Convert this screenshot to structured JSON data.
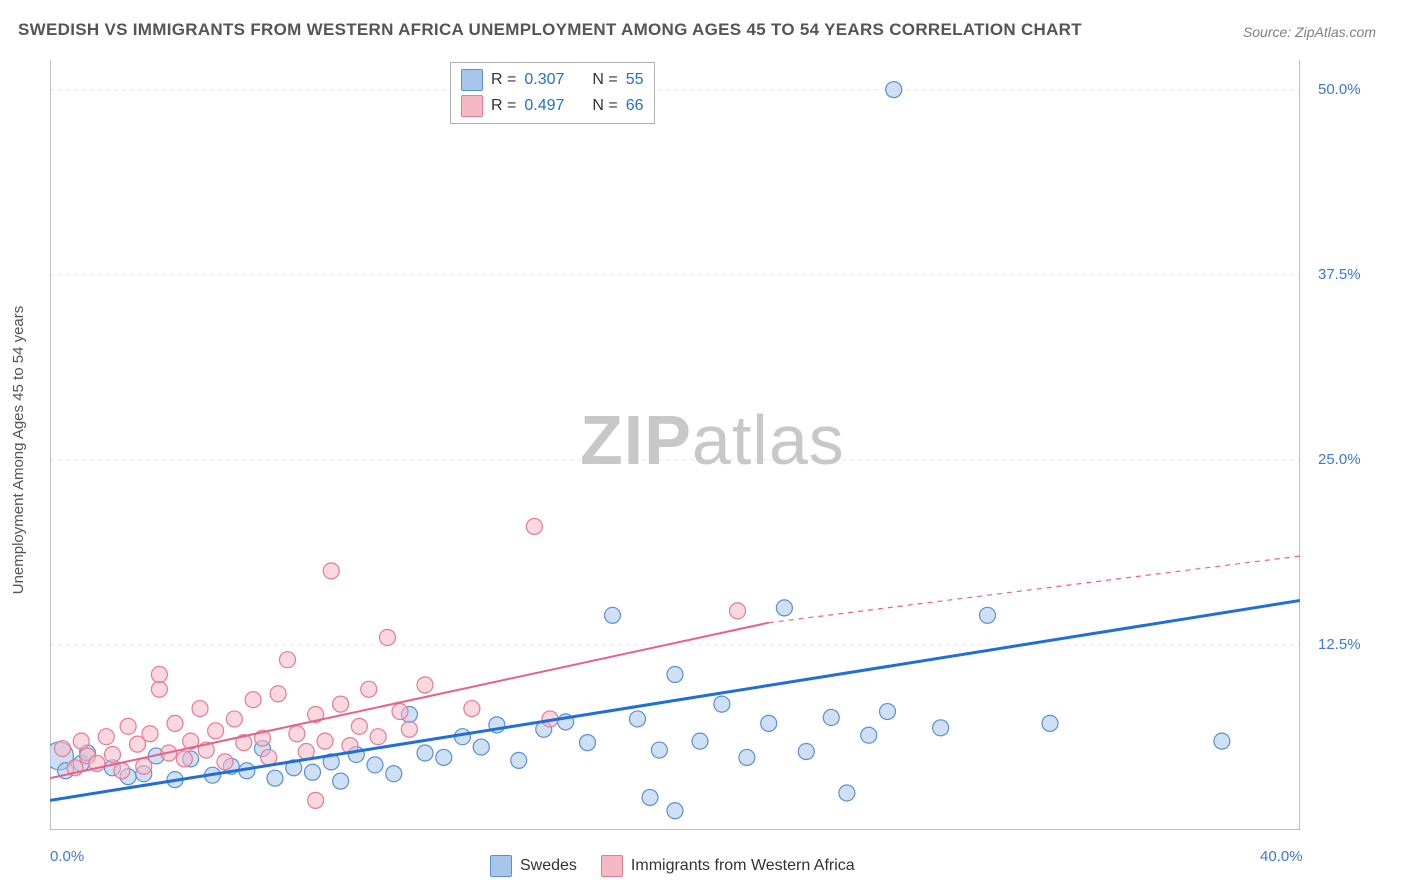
{
  "title": "SWEDISH VS IMMIGRANTS FROM WESTERN AFRICA UNEMPLOYMENT AMONG AGES 45 TO 54 YEARS CORRELATION CHART",
  "source": "Source: ZipAtlas.com",
  "y_axis_label": "Unemployment Among Ages 45 to 54 years",
  "watermark_bold": "ZIP",
  "watermark_rest": "atlas",
  "chart": {
    "type": "scatter",
    "xlim": [
      0,
      40
    ],
    "ylim": [
      0,
      52
    ],
    "x_ticks": [
      {
        "v": 0,
        "l": "0.0%"
      },
      {
        "v": 40,
        "l": "40.0%"
      }
    ],
    "y_ticks": [
      {
        "v": 12.5,
        "l": "12.5%"
      },
      {
        "v": 25,
        "l": "25.0%"
      },
      {
        "v": 37.5,
        "l": "37.5%"
      },
      {
        "v": 50,
        "l": "50.0%"
      }
    ],
    "grid_color": "#e8e8e8",
    "axis_color": "#808080",
    "background_color": "#ffffff",
    "marker_radius": 8,
    "marker_stroke_width": 1.2,
    "series": [
      {
        "name": "Swedes",
        "color_fill": "#a8c6ec",
        "color_stroke": "#5a8fd6",
        "fill_opacity": 0.55,
        "trend": {
          "x1": 0,
          "y1": 2.0,
          "x2": 40,
          "y2": 15.5,
          "dash_from_x": 40,
          "color": "#1f6fd6",
          "width": 3
        },
        "points": [
          {
            "x": 0.3,
            "y": 5.0,
            "r": 14
          },
          {
            "x": 0.5,
            "y": 4.0
          },
          {
            "x": 1.0,
            "y": 4.5
          },
          {
            "x": 1.2,
            "y": 5.2
          },
          {
            "x": 2.0,
            "y": 4.2
          },
          {
            "x": 2.5,
            "y": 3.6
          },
          {
            "x": 3.0,
            "y": 3.8
          },
          {
            "x": 3.4,
            "y": 5.0
          },
          {
            "x": 4.0,
            "y": 3.4
          },
          {
            "x": 4.5,
            "y": 4.8
          },
          {
            "x": 5.2,
            "y": 3.7
          },
          {
            "x": 5.8,
            "y": 4.3
          },
          {
            "x": 6.3,
            "y": 4.0
          },
          {
            "x": 6.8,
            "y": 5.5
          },
          {
            "x": 7.2,
            "y": 3.5
          },
          {
            "x": 7.8,
            "y": 4.2
          },
          {
            "x": 8.4,
            "y": 3.9
          },
          {
            "x": 9.0,
            "y": 4.6
          },
          {
            "x": 9.3,
            "y": 3.3
          },
          {
            "x": 9.8,
            "y": 5.1
          },
          {
            "x": 10.4,
            "y": 4.4
          },
          {
            "x": 11.0,
            "y": 3.8
          },
          {
            "x": 11.5,
            "y": 7.8
          },
          {
            "x": 12.0,
            "y": 5.2
          },
          {
            "x": 12.6,
            "y": 4.9
          },
          {
            "x": 13.2,
            "y": 6.3
          },
          {
            "x": 13.8,
            "y": 5.6
          },
          {
            "x": 14.3,
            "y": 7.1
          },
          {
            "x": 15.0,
            "y": 4.7
          },
          {
            "x": 15.8,
            "y": 6.8
          },
          {
            "x": 16.5,
            "y": 7.3
          },
          {
            "x": 17.2,
            "y": 5.9
          },
          {
            "x": 18.0,
            "y": 14.5
          },
          {
            "x": 18.8,
            "y": 7.5
          },
          {
            "x": 19.2,
            "y": 2.2
          },
          {
            "x": 19.5,
            "y": 5.4
          },
          {
            "x": 20.0,
            "y": 10.5
          },
          {
            "x": 20.0,
            "y": 1.3
          },
          {
            "x": 20.8,
            "y": 6.0
          },
          {
            "x": 21.5,
            "y": 8.5
          },
          {
            "x": 22.3,
            "y": 4.9
          },
          {
            "x": 23.0,
            "y": 7.2
          },
          {
            "x": 23.5,
            "y": 15.0
          },
          {
            "x": 24.2,
            "y": 5.3
          },
          {
            "x": 25.0,
            "y": 7.6
          },
          {
            "x": 25.5,
            "y": 2.5
          },
          {
            "x": 26.2,
            "y": 6.4
          },
          {
            "x": 26.8,
            "y": 8.0
          },
          {
            "x": 27.0,
            "y": 50.0
          },
          {
            "x": 28.5,
            "y": 6.9
          },
          {
            "x": 30.0,
            "y": 14.5
          },
          {
            "x": 32.0,
            "y": 7.2
          },
          {
            "x": 37.5,
            "y": 6.0
          }
        ]
      },
      {
        "name": "Immigrants from Western Africa",
        "color_fill": "#f5b8c5",
        "color_stroke": "#e77a95",
        "fill_opacity": 0.55,
        "trend": {
          "x1": 0,
          "y1": 3.5,
          "x2": 23,
          "y2": 14.0,
          "dash_from_x": 23,
          "dash_x2": 40,
          "dash_y2": 18.5,
          "color": "#e96088",
          "width": 2
        },
        "points": [
          {
            "x": 0.4,
            "y": 5.5
          },
          {
            "x": 0.8,
            "y": 4.2
          },
          {
            "x": 1.0,
            "y": 6.0
          },
          {
            "x": 1.2,
            "y": 5.0
          },
          {
            "x": 1.5,
            "y": 4.5
          },
          {
            "x": 1.8,
            "y": 6.3
          },
          {
            "x": 2.0,
            "y": 5.1
          },
          {
            "x": 2.3,
            "y": 4.0
          },
          {
            "x": 2.5,
            "y": 7.0
          },
          {
            "x": 2.8,
            "y": 5.8
          },
          {
            "x": 3.0,
            "y": 4.3
          },
          {
            "x": 3.2,
            "y": 6.5
          },
          {
            "x": 3.5,
            "y": 9.5
          },
          {
            "x": 3.5,
            "y": 10.5
          },
          {
            "x": 3.8,
            "y": 5.2
          },
          {
            "x": 4.0,
            "y": 7.2
          },
          {
            "x": 4.3,
            "y": 4.8
          },
          {
            "x": 4.5,
            "y": 6.0
          },
          {
            "x": 4.8,
            "y": 8.2
          },
          {
            "x": 5.0,
            "y": 5.4
          },
          {
            "x": 5.3,
            "y": 6.7
          },
          {
            "x": 5.6,
            "y": 4.6
          },
          {
            "x": 5.9,
            "y": 7.5
          },
          {
            "x": 6.2,
            "y": 5.9
          },
          {
            "x": 6.5,
            "y": 8.8
          },
          {
            "x": 6.8,
            "y": 6.2
          },
          {
            "x": 7.0,
            "y": 4.9
          },
          {
            "x": 7.3,
            "y": 9.2
          },
          {
            "x": 7.6,
            "y": 11.5
          },
          {
            "x": 7.9,
            "y": 6.5
          },
          {
            "x": 8.2,
            "y": 5.3
          },
          {
            "x": 8.5,
            "y": 7.8
          },
          {
            "x": 8.5,
            "y": 2.0
          },
          {
            "x": 8.8,
            "y": 6.0
          },
          {
            "x": 9.0,
            "y": 17.5
          },
          {
            "x": 9.3,
            "y": 8.5
          },
          {
            "x": 9.6,
            "y": 5.7
          },
          {
            "x": 9.9,
            "y": 7.0
          },
          {
            "x": 10.2,
            "y": 9.5
          },
          {
            "x": 10.5,
            "y": 6.3
          },
          {
            "x": 10.8,
            "y": 13.0
          },
          {
            "x": 11.2,
            "y": 8.0
          },
          {
            "x": 11.5,
            "y": 6.8
          },
          {
            "x": 12.0,
            "y": 9.8
          },
          {
            "x": 13.5,
            "y": 8.2
          },
          {
            "x": 15.5,
            "y": 20.5
          },
          {
            "x": 16.0,
            "y": 7.5
          },
          {
            "x": 22.0,
            "y": 14.8
          }
        ]
      }
    ]
  },
  "legend_top": {
    "rows": [
      {
        "swatch_fill": "#a8c6ec",
        "swatch_stroke": "#5a8fd6",
        "r_label": "R =",
        "r_val": "0.307",
        "n_label": "N =",
        "n_val": "55",
        "val_color": "#1f6fd6"
      },
      {
        "swatch_fill": "#f5b8c5",
        "swatch_stroke": "#e77a95",
        "r_label": "R =",
        "r_val": "0.497",
        "n_label": "N =",
        "n_val": "66",
        "val_color": "#1f6fd6"
      }
    ]
  },
  "legend_bottom": {
    "items": [
      {
        "swatch_fill": "#a8c6ec",
        "swatch_stroke": "#5a8fd6",
        "label": "Swedes"
      },
      {
        "swatch_fill": "#f5b8c5",
        "swatch_stroke": "#e77a95",
        "label": "Immigrants from Western Africa"
      }
    ]
  }
}
